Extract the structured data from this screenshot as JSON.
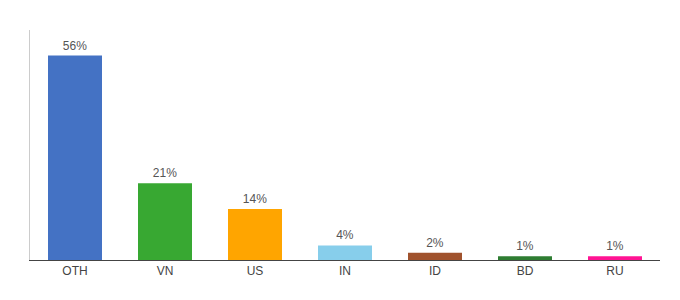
{
  "chart_data": {
    "type": "bar",
    "categories": [
      "OTH",
      "VN",
      "US",
      "IN",
      "ID",
      "BD",
      "RU"
    ],
    "values": [
      56,
      21,
      14,
      4,
      2,
      1,
      1
    ],
    "value_labels": [
      "56%",
      "21%",
      "14%",
      "4%",
      "2%",
      "1%",
      "1%"
    ],
    "colors": [
      "#4472C4",
      "#38A832",
      "#FFA500",
      "#87CEEB",
      "#A0522D",
      "#2E7D32",
      "#FF1493"
    ],
    "ylim": [
      0,
      63
    ],
    "grid": false,
    "data_labels": true,
    "tick_labels": "x"
  }
}
